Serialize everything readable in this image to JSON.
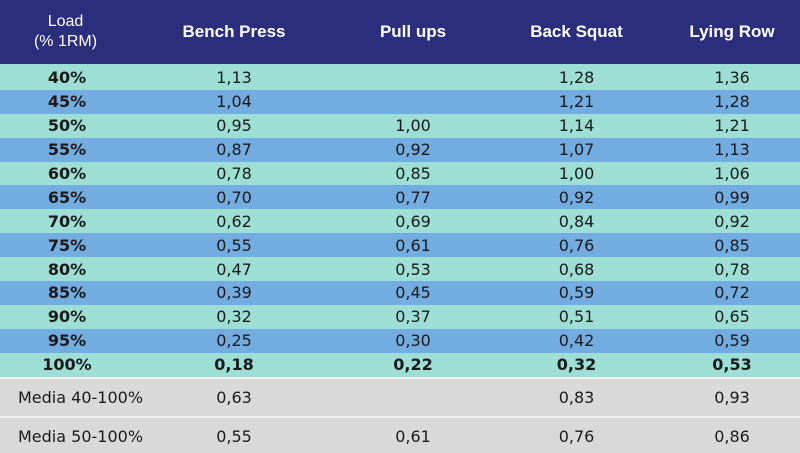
{
  "header": {
    "load_line1": "Load",
    "load_line2": "(% 1RM)",
    "columns": [
      "Bench Press",
      "Pull ups",
      "Back Squat",
      "Lying Row"
    ]
  },
  "rows": [
    {
      "load": "40%",
      "bench": "1,13",
      "pull": "",
      "squat": "1,28",
      "row": "1,36"
    },
    {
      "load": "45%",
      "bench": "1,04",
      "pull": "",
      "squat": "1,21",
      "row": "1,28"
    },
    {
      "load": "50%",
      "bench": "0,95",
      "pull": "1,00",
      "squat": "1,14",
      "row": "1,21"
    },
    {
      "load": "55%",
      "bench": "0,87",
      "pull": "0,92",
      "squat": "1,07",
      "row": "1,13"
    },
    {
      "load": "60%",
      "bench": "0,78",
      "pull": "0,85",
      "squat": "1,00",
      "row": "1,06"
    },
    {
      "load": "65%",
      "bench": "0,70",
      "pull": "0,77",
      "squat": "0,92",
      "row": "0,99"
    },
    {
      "load": "70%",
      "bench": "0,62",
      "pull": "0,69",
      "squat": "0,84",
      "row": "0,92"
    },
    {
      "load": "75%",
      "bench": "0,55",
      "pull": "0,61",
      "squat": "0,76",
      "row": "0,85"
    },
    {
      "load": "80%",
      "bench": "0,47",
      "pull": "0,53",
      "squat": "0,68",
      "row": "0,78"
    },
    {
      "load": "85%",
      "bench": "0,39",
      "pull": "0,45",
      "squat": "0,59",
      "row": "0,72"
    },
    {
      "load": "90%",
      "bench": "0,32",
      "pull": "0,37",
      "squat": "0,51",
      "row": "0,65"
    },
    {
      "load": "95%",
      "bench": "0,25",
      "pull": "0,30",
      "squat": "0,42",
      "row": "0,59"
    },
    {
      "load": "100%",
      "bench": "0,18",
      "pull": "0,22",
      "squat": "0,32",
      "row": "0,53"
    }
  ],
  "summary": [
    {
      "label": "Media 40-100%",
      "bench": "0,63",
      "pull": "",
      "squat": "0,83",
      "row": "0,93"
    },
    {
      "label": "Media 50-100%",
      "bench": "0,55",
      "pull": "0,61",
      "squat": "0,76",
      "row": "0,86"
    }
  ],
  "colors": {
    "header_bg": "#2a2e7c",
    "row_light": "#9ddfd4",
    "row_dark": "#72ace0",
    "summary_bg": "#d9d9d9"
  }
}
